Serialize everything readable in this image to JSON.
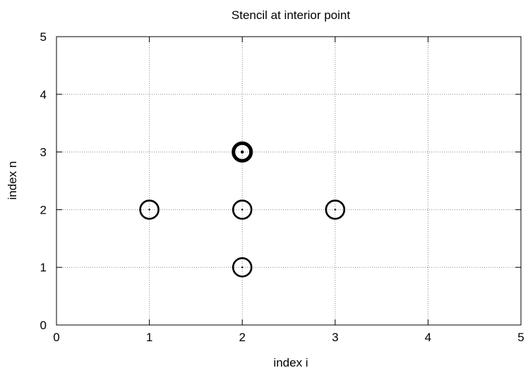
{
  "chart_data": {
    "type": "scatter",
    "title": "Stencil at interior point",
    "xlabel": "index i",
    "ylabel": "index n",
    "xlim": [
      0,
      5
    ],
    "ylim": [
      0,
      5
    ],
    "xticks": [
      "0",
      "1",
      "2",
      "3",
      "4",
      "5"
    ],
    "yticks": [
      "0",
      "1",
      "2",
      "3",
      "4",
      "5"
    ],
    "grid": true,
    "grid_style": "dotted",
    "points": [
      {
        "x": 1,
        "y": 2,
        "emphasis": "normal"
      },
      {
        "x": 2,
        "y": 2,
        "emphasis": "normal"
      },
      {
        "x": 3,
        "y": 2,
        "emphasis": "normal"
      },
      {
        "x": 2,
        "y": 1,
        "emphasis": "normal"
      },
      {
        "x": 2,
        "y": 3,
        "emphasis": "bold"
      }
    ],
    "marker": "open-circle-with-center-dot",
    "colors": {
      "marker": "#000000",
      "grid": "#888888",
      "frame": "#000000"
    }
  }
}
